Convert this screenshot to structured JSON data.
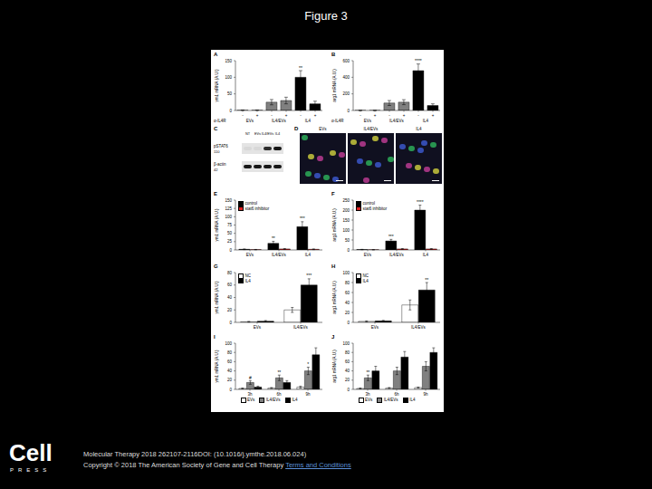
{
  "title": "Figure 3",
  "chart_data": [
    {
      "panel": "A",
      "type": "bar",
      "y_label": "ym1 mRNA (A.U.)",
      "categories": [
        "-",
        "+",
        "-",
        "+",
        "-",
        "+"
      ],
      "groups": [
        "EVs",
        "IL4/EVs",
        "IL4"
      ],
      "row_label": "α-IL4R",
      "values": [
        1,
        1,
        25,
        30,
        100,
        20
      ],
      "errors": [
        0.5,
        0.5,
        8,
        10,
        20,
        8
      ],
      "colors": [
        "#ffffff",
        "#ffffff",
        "#808080",
        "#808080",
        "#000000",
        "#000000"
      ],
      "annotations": [
        null,
        null,
        null,
        null,
        "**",
        null
      ],
      "ylim": [
        0,
        150
      ],
      "yticks": [
        0,
        50,
        100,
        150
      ]
    },
    {
      "panel": "B",
      "type": "bar",
      "y_label": "arg1 mRNA (A.U.)",
      "categories": [
        "-",
        "+",
        "-",
        "+",
        "-",
        "+"
      ],
      "groups": [
        "EVs",
        "IL4/EVs",
        "IL4"
      ],
      "row_label": "α-IL4R",
      "values": [
        1,
        1,
        90,
        100,
        480,
        60
      ],
      "errors": [
        0.5,
        0.5,
        30,
        30,
        80,
        20
      ],
      "colors": [
        "#ffffff",
        "#ffffff",
        "#808080",
        "#808080",
        "#000000",
        "#000000"
      ],
      "annotations": [
        null,
        null,
        null,
        null,
        "****",
        null
      ],
      "ylim": [
        0,
        600
      ],
      "yticks": [
        0,
        200,
        400,
        600
      ]
    },
    {
      "panel": "E",
      "type": "bar",
      "y_label": "ym1 mRNA (A.U.)",
      "categories": [
        "EVs",
        "IL4/EVs",
        "IL4"
      ],
      "series": [
        {
          "name": "control",
          "color": "#000000",
          "values": [
            2,
            20,
            70
          ],
          "errors": [
            1,
            6,
            15
          ],
          "annotations": [
            null,
            "**",
            "***"
          ]
        },
        {
          "name": "stat6 inhibitor",
          "color": "#e02020",
          "values": [
            1,
            3,
            2
          ],
          "errors": [
            0.5,
            1,
            1
          ],
          "annotations": [
            null,
            null,
            null
          ]
        }
      ],
      "legend": "upper left",
      "ylim": [
        0,
        150
      ],
      "yticks": [
        0,
        25,
        50,
        75,
        100,
        125,
        150
      ]
    },
    {
      "panel": "F",
      "type": "bar",
      "y_label": "arg1 mRNA (A.U.)",
      "categories": [
        "EVs",
        "IL4/EVs",
        "IL4"
      ],
      "series": [
        {
          "name": "control",
          "color": "#000000",
          "values": [
            2,
            45,
            200
          ],
          "errors": [
            1,
            8,
            25
          ],
          "annotations": [
            null,
            "***",
            "****"
          ]
        },
        {
          "name": "stat6 inhibitor",
          "color": "#e02020",
          "values": [
            1,
            5,
            5
          ],
          "errors": [
            0.5,
            2,
            2
          ],
          "annotations": [
            null,
            null,
            null
          ]
        }
      ],
      "legend": "upper left",
      "ylim": [
        0,
        250
      ],
      "yticks": [
        0,
        50,
        100,
        150,
        200,
        250
      ]
    },
    {
      "panel": "G",
      "type": "bar",
      "y_label": "ym1 mRNA (A.U.)",
      "categories": [
        "EVs",
        "IL4/EVs"
      ],
      "series": [
        {
          "name": "NC",
          "color": "#ffffff",
          "values": [
            1,
            20
          ],
          "errors": [
            0.5,
            4
          ],
          "annotations": [
            null,
            null
          ]
        },
        {
          "name": "IL4",
          "color": "#000000",
          "values": [
            2,
            60
          ],
          "errors": [
            1,
            10
          ],
          "annotations": [
            null,
            "***"
          ]
        }
      ],
      "legend": "upper left",
      "ylim": [
        0,
        80
      ],
      "yticks": [
        0,
        20,
        40,
        60,
        80
      ]
    },
    {
      "panel": "H",
      "type": "bar",
      "y_label": "arg1 mRNA (A.U.)",
      "categories": [
        "EVs",
        "IL4/EVs"
      ],
      "series": [
        {
          "name": "NC",
          "color": "#ffffff",
          "values": [
            2,
            35
          ],
          "errors": [
            1,
            10
          ],
          "annotations": [
            null,
            null
          ]
        },
        {
          "name": "IL4",
          "color": "#000000",
          "values": [
            3,
            65
          ],
          "errors": [
            1,
            15
          ],
          "annotations": [
            null,
            "**"
          ]
        }
      ],
      "legend": "upper left",
      "ylim": [
        0,
        100
      ],
      "yticks": [
        0,
        20,
        40,
        60,
        80,
        100
      ]
    },
    {
      "panel": "I",
      "type": "bar",
      "y_label": "ym1 mRNA (A.U.)",
      "categories": [
        "3h",
        "6h",
        "9h"
      ],
      "series": [
        {
          "name": "EVs",
          "color": "#ffffff",
          "values": [
            2,
            3,
            5
          ],
          "errors": [
            1,
            1,
            2
          ],
          "annotations": [
            null,
            null,
            null
          ]
        },
        {
          "name": "IL4/EVs",
          "color": "#808080",
          "values": [
            15,
            25,
            40
          ],
          "errors": [
            4,
            6,
            8
          ],
          "annotations": [
            "#",
            "**",
            "*"
          ]
        },
        {
          "name": "IL4",
          "color": "#000000",
          "values": [
            5,
            15,
            75
          ],
          "errors": [
            2,
            4,
            15
          ],
          "annotations": [
            null,
            null,
            null
          ]
        }
      ],
      "legend": "bottom",
      "ylim": [
        0,
        100
      ],
      "yticks": [
        0,
        20,
        40,
        60,
        80,
        100
      ]
    },
    {
      "panel": "J",
      "type": "bar",
      "y_label": "arg1 mRNA (A.U.)",
      "categories": [
        "3h",
        "6h",
        "9h"
      ],
      "series": [
        {
          "name": "EVs",
          "color": "#ffffff",
          "values": [
            2,
            3,
            4
          ],
          "errors": [
            1,
            1,
            1
          ],
          "annotations": [
            null,
            null,
            null
          ]
        },
        {
          "name": "IL4/EVs",
          "color": "#808080",
          "values": [
            25,
            40,
            50
          ],
          "errors": [
            6,
            8,
            10
          ],
          "annotations": [
            "**",
            null,
            null
          ]
        },
        {
          "name": "IL4",
          "color": "#000000",
          "values": [
            40,
            70,
            80
          ],
          "errors": [
            10,
            12,
            10
          ],
          "annotations": [
            null,
            null,
            null
          ]
        }
      ],
      "legend": "bottom",
      "ylim": [
        0,
        100
      ],
      "yticks": [
        0,
        20,
        40,
        60,
        80,
        100
      ]
    }
  ],
  "blot": {
    "panel": "C",
    "lanes": [
      "NT",
      "EVs",
      "IL4/EVs",
      "IL4"
    ],
    "rows": [
      {
        "label": "pSTAT6",
        "kda": 110,
        "intensity": [
          0.05,
          0.05,
          0.8,
          0.9
        ]
      },
      {
        "label": "β-actin",
        "kda": 42,
        "intensity": [
          0.9,
          0.9,
          0.9,
          0.9
        ]
      }
    ]
  },
  "images": {
    "panel": "D",
    "titles": [
      "EVs",
      "IL4/EVs",
      "IL4"
    ]
  },
  "footer": {
    "citation": "Molecular Therapy 2018 262107-2116DOI: (10.1016/j.ymthe.2018.06.024)",
    "copyright": "Copyright © 2018 The American Society of Gene and Cell Therapy",
    "link": "Terms and Conditions"
  },
  "logo": {
    "name": "Cell",
    "sub": "PRESS"
  }
}
